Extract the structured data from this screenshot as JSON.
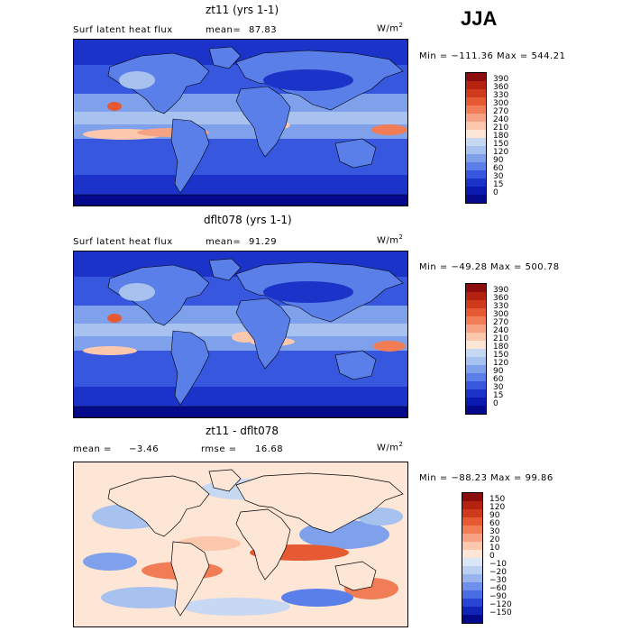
{
  "season_label": "JJA",
  "panels": [
    {
      "id": "top",
      "title": "zt11 (yrs 1-1)",
      "left_label": "Surf latent heat flux",
      "stat_label": "mean=",
      "stat_value": "87.83",
      "stat2_label": "",
      "stat2_value": "",
      "units": "W/m",
      "units_sup": "2",
      "minmax_text": "Min = −111.36 Max = 544.21"
    },
    {
      "id": "middle",
      "title": "dflt078 (yrs 1-1)",
      "left_label": "Surf latent heat flux",
      "stat_label": "mean=",
      "stat_value": "91.29",
      "stat2_label": "",
      "stat2_value": "",
      "units": "W/m",
      "units_sup": "2",
      "minmax_text": "Min = −49.28 Max = 500.78"
    },
    {
      "id": "bottom",
      "title": "zt11 - dflt078",
      "left_label": "mean =",
      "stat_label": "",
      "stat_value": "−3.46",
      "stat2_label": "rmse =",
      "stat2_value": "16.68",
      "units": "W/m",
      "units_sup": "2",
      "minmax_text": "Min = −88.23 Max = 99.86"
    }
  ],
  "chart_data": [
    {
      "type": "heatmap",
      "title": "zt11 (yrs 1-1)",
      "variable": "Surf latent heat flux",
      "units": "W/m2",
      "colorbar_levels": [
        "390",
        "360",
        "330",
        "300",
        "270",
        "240",
        "210",
        "180",
        "150",
        "120",
        "90",
        "60",
        "30",
        "15",
        "0"
      ],
      "colorbar_colors": [
        "#8b0d0d",
        "#b3230f",
        "#cf3a1c",
        "#e55a33",
        "#f07d55",
        "#f7a283",
        "#fbc8ad",
        "#fde6d6",
        "#c7d8f3",
        "#a8c2ef",
        "#7fa0ea",
        "#5a7fe8",
        "#3657de",
        "#1c33c9",
        "#0a1ab0",
        "#050a8c"
      ]
    },
    {
      "type": "heatmap",
      "title": "dflt078 (yrs 1-1)",
      "variable": "Surf latent heat flux",
      "units": "W/m2",
      "colorbar_levels": [
        "390",
        "360",
        "330",
        "300",
        "270",
        "240",
        "210",
        "180",
        "150",
        "120",
        "90",
        "60",
        "30",
        "15",
        "0"
      ],
      "colorbar_colors": [
        "#8b0d0d",
        "#b3230f",
        "#cf3a1c",
        "#e55a33",
        "#f07d55",
        "#f7a283",
        "#fbc8ad",
        "#fde6d6",
        "#c7d8f3",
        "#a8c2ef",
        "#7fa0ea",
        "#5a7fe8",
        "#3657de",
        "#1c33c9",
        "#0a1ab0",
        "#050a8c"
      ]
    },
    {
      "type": "heatmap",
      "title": "zt11 - dflt078",
      "units": "W/m2",
      "colorbar_levels": [
        "150",
        "120",
        "90",
        "60",
        "30",
        "20",
        "10",
        "0",
        "−10",
        "−20",
        "−30",
        "−60",
        "−90",
        "−120",
        "−150"
      ],
      "colorbar_colors": [
        "#8b0d0d",
        "#b3230f",
        "#cf3a1c",
        "#e55a33",
        "#f07d55",
        "#f7a283",
        "#fbc8ad",
        "#fde6d6",
        "#dbe6f7",
        "#bcd0f2",
        "#98b3ee",
        "#6f90ea",
        "#4a6de4",
        "#2a45d6",
        "#1224b8",
        "#050a8c"
      ]
    }
  ]
}
